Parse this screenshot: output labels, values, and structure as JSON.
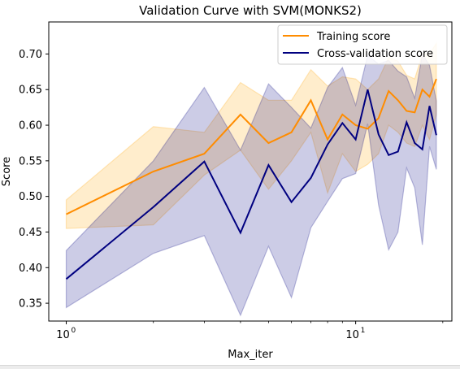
{
  "chart_data": {
    "type": "line",
    "title": "Validation Curve with SVM(MONKS2)",
    "xlabel": "Max_iter",
    "ylabel": "Score",
    "xscale": "log",
    "xlim": [
      0.87,
      21.5
    ],
    "ylim": [
      0.325,
      0.745
    ],
    "x_ticks": [
      {
        "value": 1,
        "base": "10",
        "exp": "0"
      },
      {
        "value": 10,
        "base": "10",
        "exp": "1"
      }
    ],
    "y_ticks": [
      0.35,
      0.4,
      0.45,
      0.5,
      0.55,
      0.6,
      0.65,
      0.7
    ],
    "y_tick_labels": [
      "0.35",
      "0.40",
      "0.45",
      "0.50",
      "0.55",
      "0.60",
      "0.65",
      "0.70"
    ],
    "x": [
      1,
      2,
      3,
      4,
      5,
      6,
      7,
      8,
      9,
      10,
      11,
      12,
      13,
      14,
      15,
      16,
      17,
      18,
      19
    ],
    "series": [
      {
        "name": "Training score",
        "color": "#ff8c00",
        "values": [
          0.475,
          0.535,
          0.56,
          0.615,
          0.575,
          0.59,
          0.635,
          0.58,
          0.615,
          0.6,
          0.595,
          0.61,
          0.648,
          0.635,
          0.62,
          0.618,
          0.65,
          0.64,
          0.665
        ],
        "lower": [
          0.455,
          0.46,
          0.53,
          0.565,
          0.51,
          0.55,
          0.59,
          0.505,
          0.56,
          0.535,
          0.545,
          0.56,
          0.6,
          0.59,
          0.575,
          0.57,
          0.6,
          0.58,
          0.615
        ],
        "upper": [
          0.495,
          0.598,
          0.59,
          0.66,
          0.635,
          0.635,
          0.678,
          0.655,
          0.668,
          0.665,
          0.65,
          0.665,
          0.695,
          0.69,
          0.67,
          0.665,
          0.7,
          0.7,
          0.715
        ]
      },
      {
        "name": "Cross-validation score",
        "color": "#000080",
        "values": [
          0.384,
          0.485,
          0.549,
          0.449,
          0.544,
          0.492,
          0.526,
          0.573,
          0.603,
          0.58,
          0.65,
          0.587,
          0.558,
          0.563,
          0.604,
          0.575,
          0.566,
          0.627,
          0.586
        ],
        "lower": [
          0.344,
          0.42,
          0.445,
          0.333,
          0.43,
          0.358,
          0.456,
          0.493,
          0.525,
          0.532,
          0.602,
          0.488,
          0.425,
          0.45,
          0.54,
          0.512,
          0.432,
          0.57,
          0.538
        ],
        "upper": [
          0.424,
          0.55,
          0.653,
          0.565,
          0.658,
          0.625,
          0.596,
          0.653,
          0.681,
          0.628,
          0.698,
          0.686,
          0.691,
          0.676,
          0.668,
          0.638,
          0.7,
          0.684,
          0.634
        ]
      }
    ],
    "legend": {
      "placement": "top-right"
    },
    "grid": false
  }
}
